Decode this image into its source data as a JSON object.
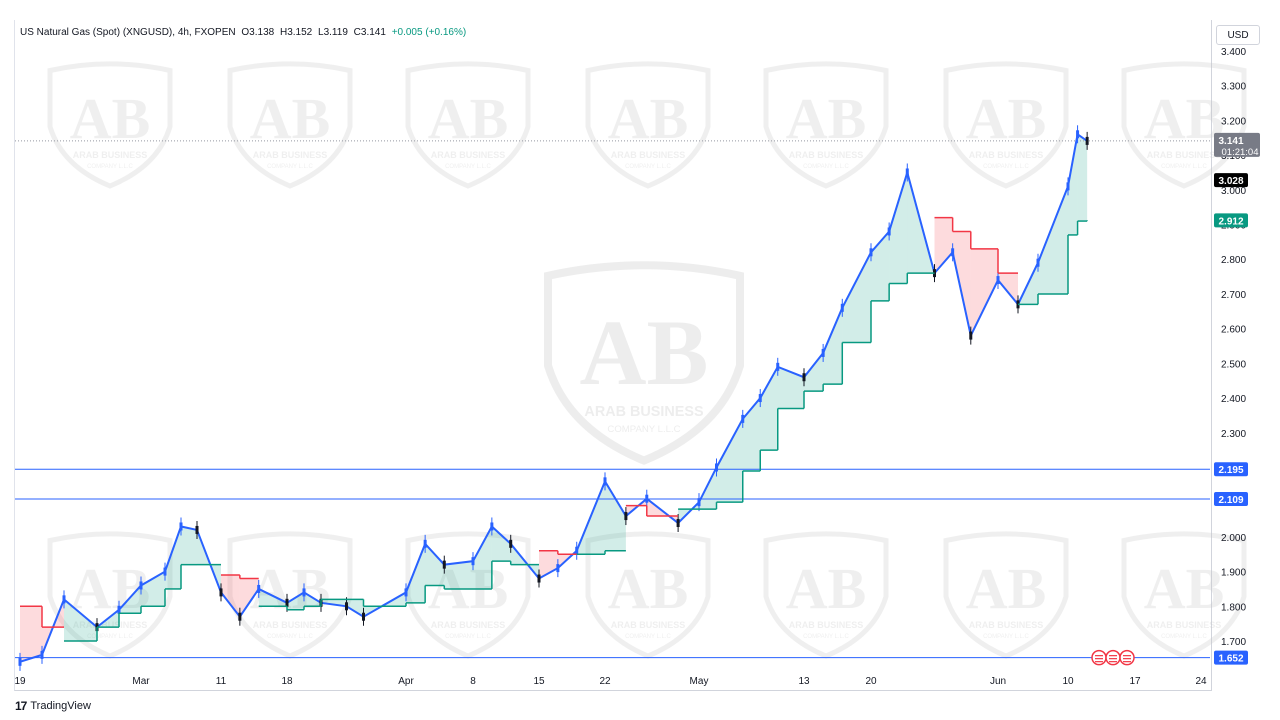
{
  "header": {
    "symbol": "US Natural Gas (Spot) (XNGUSD), 4h, FXOPEN",
    "open": "O3.138",
    "high": "H3.152",
    "low": "L3.119",
    "close": "C3.141",
    "change": "+0.005 (+0.16%)"
  },
  "currency_button": "USD",
  "footer": {
    "logo": "17",
    "brand": "TradingView"
  },
  "watermark": {
    "brand": "ARAB BUSINESS",
    "sub": "COMPANY L.L.C",
    "letters": "AB"
  },
  "colors": {
    "up_candle": "#2962ff",
    "down_candle": "#131722",
    "supertrend_up": "#089981",
    "supertrend_down": "#f23645",
    "level_line": "#2962ff",
    "last_price_tag": "#787b86"
  },
  "chart_data": {
    "type": "line",
    "title": "US Natural Gas (Spot) (XNGUSD), 4h, FXOPEN",
    "xlabel": "",
    "ylabel": "",
    "y_scale": "linear",
    "ylim": [
      1.62,
      3.42
    ],
    "y_ticks": [
      "1.700",
      "1.800",
      "1.900",
      "2.000",
      "2.100",
      "2.200",
      "2.300",
      "2.400",
      "2.500",
      "2.600",
      "2.700",
      "2.800",
      "2.900",
      "3.000",
      "3.100",
      "3.200",
      "3.300",
      "3.400"
    ],
    "x_ticks": [
      "19",
      "Mar",
      "11",
      "18",
      "Apr",
      "8",
      "15",
      "22",
      "May",
      "13",
      "20",
      "Jun",
      "10",
      "17",
      "24"
    ],
    "price_series": {
      "name": "",
      "dates": [
        "2024-02-19",
        "2024-02-21",
        "2024-02-23",
        "2024-02-26",
        "2024-02-28",
        "2024-03-01",
        "2024-03-04",
        "2024-03-06",
        "2024-03-08",
        "2024-03-11",
        "2024-03-13",
        "2024-03-15",
        "2024-03-18",
        "2024-03-20",
        "2024-03-22",
        "2024-03-25",
        "2024-03-27",
        "2024-04-01",
        "2024-04-03",
        "2024-04-05",
        "2024-04-08",
        "2024-04-10",
        "2024-04-12",
        "2024-04-15",
        "2024-04-17",
        "2024-04-19",
        "2024-04-22",
        "2024-04-24",
        "2024-04-26",
        "2024-04-29",
        "2024-05-01",
        "2024-05-03",
        "2024-05-06",
        "2024-05-08",
        "2024-05-10",
        "2024-05-13",
        "2024-05-15",
        "2024-05-17",
        "2024-05-20",
        "2024-05-22",
        "2024-05-24",
        "2024-05-27",
        "2024-05-29",
        "2024-05-31",
        "2024-06-03",
        "2024-06-05",
        "2024-06-07",
        "2024-06-10",
        "2024-06-11",
        "2024-06-12"
      ],
      "values": [
        1.64,
        1.66,
        1.82,
        1.74,
        1.79,
        1.86,
        1.9,
        2.03,
        2.02,
        1.84,
        1.77,
        1.85,
        1.81,
        1.84,
        1.81,
        1.8,
        1.77,
        1.84,
        1.98,
        1.92,
        1.93,
        2.03,
        1.98,
        1.88,
        1.91,
        1.96,
        2.16,
        2.06,
        2.11,
        2.04,
        2.1,
        2.2,
        2.34,
        2.4,
        2.49,
        2.46,
        2.53,
        2.66,
        2.82,
        2.88,
        3.05,
        2.76,
        2.82,
        2.58,
        2.74,
        2.67,
        2.79,
        3.01,
        3.16,
        3.141
      ]
    },
    "supertrend": {
      "dates": [
        "2024-02-19",
        "2024-02-21",
        "2024-02-23",
        "2024-02-26",
        "2024-02-28",
        "2024-03-01",
        "2024-03-04",
        "2024-03-06",
        "2024-03-08",
        "2024-03-11",
        "2024-03-13",
        "2024-03-15",
        "2024-03-18",
        "2024-03-20",
        "2024-03-22",
        "2024-03-25",
        "2024-03-27",
        "2024-04-01",
        "2024-04-03",
        "2024-04-05",
        "2024-04-08",
        "2024-04-10",
        "2024-04-12",
        "2024-04-15",
        "2024-04-17",
        "2024-04-19",
        "2024-04-22",
        "2024-04-24",
        "2024-04-26",
        "2024-04-29",
        "2024-05-01",
        "2024-05-03",
        "2024-05-06",
        "2024-05-08",
        "2024-05-10",
        "2024-05-13",
        "2024-05-15",
        "2024-05-17",
        "2024-05-20",
        "2024-05-22",
        "2024-05-24",
        "2024-05-27",
        "2024-05-29",
        "2024-05-31",
        "2024-06-03",
        "2024-06-05",
        "2024-06-07",
        "2024-06-10",
        "2024-06-11",
        "2024-06-12"
      ],
      "values": [
        1.8,
        1.74,
        1.7,
        1.74,
        1.78,
        1.8,
        1.85,
        1.92,
        1.92,
        1.89,
        1.88,
        1.8,
        1.79,
        1.8,
        1.82,
        1.82,
        1.8,
        1.81,
        1.86,
        1.85,
        1.85,
        1.93,
        1.92,
        1.96,
        1.95,
        1.95,
        1.96,
        2.09,
        2.06,
        2.08,
        2.08,
        2.1,
        2.19,
        2.25,
        2.37,
        2.42,
        2.44,
        2.56,
        2.68,
        2.73,
        2.76,
        2.92,
        2.88,
        2.83,
        2.76,
        2.67,
        2.7,
        2.87,
        2.91,
        2.912
      ],
      "direction": [
        "down",
        "down",
        "up",
        "up",
        "up",
        "up",
        "up",
        "up",
        "up",
        "down",
        "down",
        "up",
        "up",
        "up",
        "up",
        "up",
        "up",
        "up",
        "up",
        "up",
        "up",
        "up",
        "up",
        "down",
        "down",
        "up",
        "up",
        "down",
        "down",
        "up",
        "up",
        "up",
        "up",
        "up",
        "up",
        "up",
        "up",
        "up",
        "up",
        "up",
        "up",
        "down",
        "down",
        "down",
        "down",
        "up",
        "up",
        "up",
        "up",
        "up"
      ]
    },
    "levels": [
      {
        "value": 2.195,
        "label": "2.195"
      },
      {
        "value": 2.109,
        "label": "2.109"
      },
      {
        "value": 1.652,
        "label": "1.652"
      }
    ],
    "price_labels": [
      {
        "value": 3.141,
        "label": "3.141",
        "sub": "01:21:04",
        "kind": "last"
      },
      {
        "value": 3.028,
        "label": "3.028",
        "kind": "black"
      },
      {
        "value": 2.912,
        "label": "2.912",
        "kind": "green"
      }
    ]
  }
}
